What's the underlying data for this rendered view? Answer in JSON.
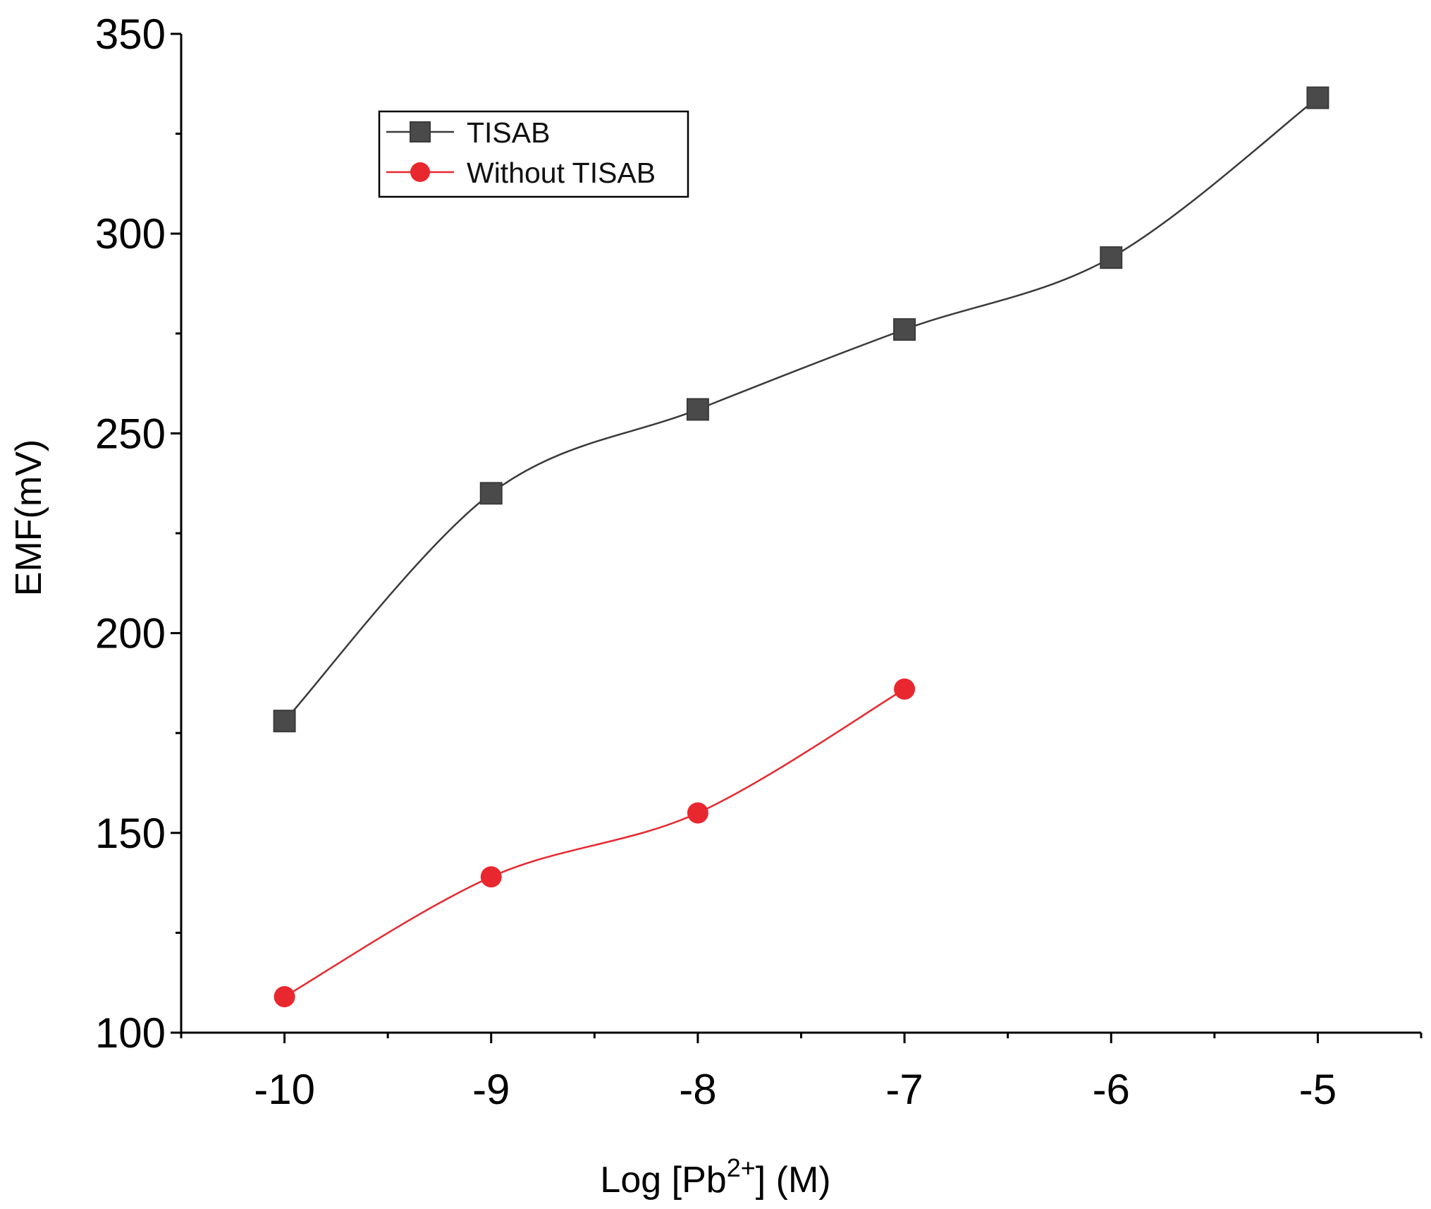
{
  "chart_data": {
    "type": "line",
    "title": "",
    "xlabel": {
      "prefix": "Log [Pb",
      "superscript": "2+",
      "suffix": "] (M)"
    },
    "ylabel": "EMF(mV)",
    "xlim": [
      -10.5,
      -4.5
    ],
    "ylim": [
      100,
      350
    ],
    "x_ticks": [
      -10,
      -9,
      -8,
      -7,
      -6,
      -5
    ],
    "x_tick_labels": [
      "-10",
      "-9",
      "-8",
      "-7",
      "-6",
      "-5"
    ],
    "x_minor_ticks": [
      -10.5,
      -9.5,
      -8.5,
      -7.5,
      -6.5,
      -5.5,
      -4.5
    ],
    "y_ticks": [
      100,
      150,
      200,
      250,
      300,
      350
    ],
    "y_tick_labels": [
      "100",
      "150",
      "200",
      "250",
      "300",
      "350"
    ],
    "y_minor_ticks": [
      125,
      175,
      225,
      275,
      325
    ],
    "grid": false,
    "legend_position": "top-left",
    "series": [
      {
        "name": "TISAB",
        "color": "#3a3a3a",
        "marker": "square",
        "x": [
          -10,
          -9,
          -8,
          -7,
          -6,
          -5
        ],
        "values": [
          178,
          235,
          256,
          276,
          294,
          334
        ]
      },
      {
        "name": "Without TISAB",
        "color": "#e8282e",
        "marker": "circle",
        "x": [
          -10,
          -9,
          -8,
          -7
        ],
        "values": [
          109,
          139,
          155,
          186
        ]
      }
    ]
  }
}
